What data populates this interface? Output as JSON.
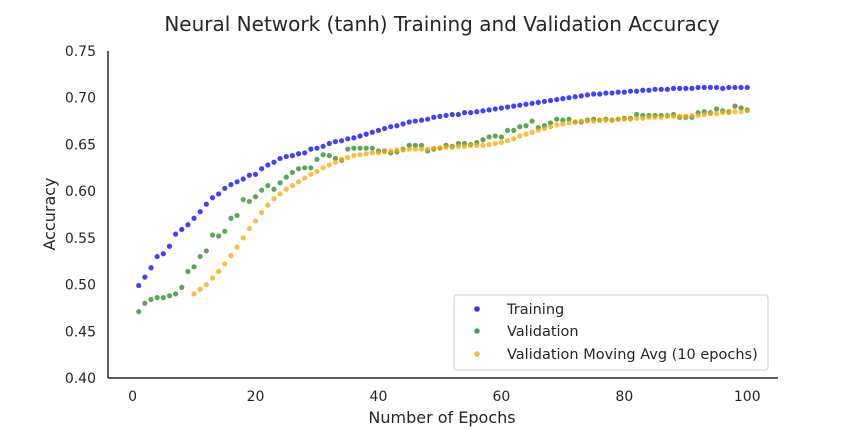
{
  "chart_data": {
    "type": "scatter",
    "title": "Neural Network (tanh) Training and Validation Accuracy",
    "xlabel": "Number of Epochs",
    "ylabel": "Accuracy",
    "xlim": [
      -4,
      105
    ],
    "ylim": [
      0.4,
      0.75
    ],
    "xticks": [
      0,
      20,
      40,
      60,
      80,
      100
    ],
    "yticks": [
      0.4,
      0.45,
      0.5,
      0.55,
      0.6,
      0.65,
      0.7,
      0.75
    ],
    "ytick_labels": [
      "0.40",
      "0.45",
      "0.50",
      "0.55",
      "0.60",
      "0.65",
      "0.70",
      "0.75"
    ],
    "grid": false,
    "legend_position": "lower-right",
    "series": [
      {
        "name": "Training",
        "color": "#0000ff",
        "x": [
          1,
          2,
          3,
          4,
          5,
          6,
          7,
          8,
          9,
          10,
          11,
          12,
          13,
          14,
          15,
          16,
          17,
          18,
          19,
          20,
          21,
          22,
          23,
          24,
          25,
          26,
          27,
          28,
          29,
          30,
          31,
          32,
          33,
          34,
          35,
          36,
          37,
          38,
          39,
          40,
          41,
          42,
          43,
          44,
          45,
          46,
          47,
          48,
          49,
          50,
          51,
          52,
          53,
          54,
          55,
          56,
          57,
          58,
          59,
          60,
          61,
          62,
          63,
          64,
          65,
          66,
          67,
          68,
          69,
          70,
          71,
          72,
          73,
          74,
          75,
          76,
          77,
          78,
          79,
          80,
          81,
          82,
          83,
          84,
          85,
          86,
          87,
          88,
          89,
          90,
          91,
          92,
          93,
          94,
          95,
          96,
          97,
          98,
          99,
          100
        ],
        "values": [
          0.499,
          0.508,
          0.518,
          0.53,
          0.533,
          0.541,
          0.554,
          0.559,
          0.564,
          0.571,
          0.578,
          0.586,
          0.593,
          0.597,
          0.603,
          0.607,
          0.61,
          0.613,
          0.617,
          0.618,
          0.624,
          0.628,
          0.631,
          0.635,
          0.637,
          0.638,
          0.64,
          0.641,
          0.645,
          0.646,
          0.648,
          0.651,
          0.653,
          0.654,
          0.656,
          0.657,
          0.659,
          0.661,
          0.663,
          0.665,
          0.667,
          0.669,
          0.67,
          0.672,
          0.674,
          0.675,
          0.676,
          0.677,
          0.679,
          0.68,
          0.681,
          0.682,
          0.682,
          0.684,
          0.684,
          0.685,
          0.686,
          0.687,
          0.688,
          0.689,
          0.69,
          0.691,
          0.692,
          0.693,
          0.694,
          0.695,
          0.696,
          0.697,
          0.698,
          0.699,
          0.7,
          0.701,
          0.702,
          0.703,
          0.704,
          0.704,
          0.705,
          0.705,
          0.706,
          0.706,
          0.707,
          0.707,
          0.708,
          0.708,
          0.709,
          0.709,
          0.709,
          0.71,
          0.71,
          0.71,
          0.71,
          0.711,
          0.711,
          0.711,
          0.711,
          0.71,
          0.711,
          0.711,
          0.711,
          0.711
        ]
      },
      {
        "name": "Validation",
        "color": "#228b22",
        "x": [
          1,
          2,
          3,
          4,
          5,
          6,
          7,
          8,
          9,
          10,
          11,
          12,
          13,
          14,
          15,
          16,
          17,
          18,
          19,
          20,
          21,
          22,
          23,
          24,
          25,
          26,
          27,
          28,
          29,
          30,
          31,
          32,
          33,
          34,
          35,
          36,
          37,
          38,
          39,
          40,
          41,
          42,
          43,
          44,
          45,
          46,
          47,
          48,
          49,
          50,
          51,
          52,
          53,
          54,
          55,
          56,
          57,
          58,
          59,
          60,
          61,
          62,
          63,
          64,
          65,
          66,
          67,
          68,
          69,
          70,
          71,
          72,
          73,
          74,
          75,
          76,
          77,
          78,
          79,
          80,
          81,
          82,
          83,
          84,
          85,
          86,
          87,
          88,
          89,
          90,
          91,
          92,
          93,
          94,
          95,
          96,
          97,
          98,
          99,
          100
        ],
        "values": [
          0.471,
          0.48,
          0.484,
          0.486,
          0.486,
          0.488,
          0.49,
          0.497,
          0.514,
          0.519,
          0.53,
          0.536,
          0.553,
          0.552,
          0.557,
          0.571,
          0.574,
          0.591,
          0.589,
          0.594,
          0.601,
          0.606,
          0.602,
          0.609,
          0.615,
          0.62,
          0.624,
          0.625,
          0.625,
          0.634,
          0.639,
          0.638,
          0.635,
          0.633,
          0.645,
          0.646,
          0.646,
          0.646,
          0.646,
          0.643,
          0.643,
          0.641,
          0.642,
          0.645,
          0.649,
          0.649,
          0.649,
          0.643,
          0.645,
          0.646,
          0.649,
          0.648,
          0.651,
          0.651,
          0.65,
          0.652,
          0.655,
          0.658,
          0.659,
          0.658,
          0.665,
          0.665,
          0.669,
          0.67,
          0.675,
          0.668,
          0.67,
          0.673,
          0.677,
          0.676,
          0.677,
          0.674,
          0.674,
          0.676,
          0.677,
          0.676,
          0.677,
          0.676,
          0.677,
          0.678,
          0.678,
          0.682,
          0.681,
          0.681,
          0.681,
          0.681,
          0.681,
          0.682,
          0.679,
          0.679,
          0.679,
          0.684,
          0.685,
          0.684,
          0.688,
          0.686,
          0.685,
          0.691,
          0.689,
          0.687
        ]
      },
      {
        "name": "Validation Moving Avg (10 epochs)",
        "color": "#ffa500",
        "x": [
          10,
          11,
          12,
          13,
          14,
          15,
          16,
          17,
          18,
          19,
          20,
          21,
          22,
          23,
          24,
          25,
          26,
          27,
          28,
          29,
          30,
          31,
          32,
          33,
          34,
          35,
          36,
          37,
          38,
          39,
          40,
          41,
          42,
          43,
          44,
          45,
          46,
          47,
          48,
          49,
          50,
          51,
          52,
          53,
          54,
          55,
          56,
          57,
          58,
          59,
          60,
          61,
          62,
          63,
          64,
          65,
          66,
          67,
          68,
          69,
          70,
          71,
          72,
          73,
          74,
          75,
          76,
          77,
          78,
          79,
          80,
          81,
          82,
          83,
          84,
          85,
          86,
          87,
          88,
          89,
          90,
          91,
          92,
          93,
          94,
          95,
          96,
          97,
          98,
          99,
          100
        ],
        "values": [
          0.49,
          0.495,
          0.5,
          0.507,
          0.514,
          0.522,
          0.531,
          0.54,
          0.55,
          0.56,
          0.568,
          0.577,
          0.585,
          0.592,
          0.597,
          0.602,
          0.606,
          0.61,
          0.614,
          0.618,
          0.621,
          0.625,
          0.628,
          0.631,
          0.634,
          0.636,
          0.638,
          0.639,
          0.64,
          0.641,
          0.641,
          0.642,
          0.643,
          0.644,
          0.644,
          0.645,
          0.645,
          0.645,
          0.645,
          0.646,
          0.646,
          0.647,
          0.647,
          0.648,
          0.648,
          0.649,
          0.649,
          0.649,
          0.65,
          0.651,
          0.652,
          0.654,
          0.656,
          0.659,
          0.661,
          0.663,
          0.665,
          0.667,
          0.669,
          0.671,
          0.672,
          0.673,
          0.674,
          0.675,
          0.675,
          0.675,
          0.676,
          0.676,
          0.676,
          0.677,
          0.677,
          0.677,
          0.678,
          0.678,
          0.679,
          0.679,
          0.679,
          0.68,
          0.68,
          0.68,
          0.68,
          0.681,
          0.681,
          0.682,
          0.683,
          0.683,
          0.684,
          0.684,
          0.685,
          0.685,
          0.686
        ]
      }
    ]
  }
}
